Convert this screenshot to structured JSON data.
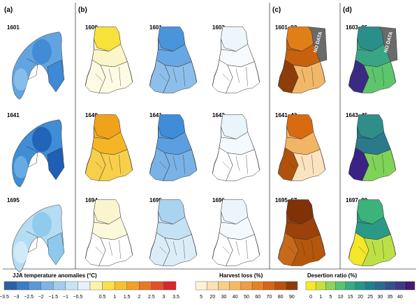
{
  "panels": [
    {
      "label": "(a)",
      "rows": [
        {
          "years": [
            "1601"
          ],
          "colors": [
            "#3e8ad4",
            "#62a4e2",
            "#8cc2ec"
          ]
        },
        {
          "years": [
            "1641"
          ],
          "colors": [
            "#1f5fb5",
            "#3f8dd5",
            "#6fb0e6"
          ]
        },
        {
          "years": [
            "1695"
          ],
          "colors": [
            "#8cc9ec",
            "#b4dcf2",
            "#d6ecf8"
          ]
        }
      ]
    },
    {
      "label": "(b)",
      "rows": [
        {
          "years": [
            "1600",
            "1601",
            "1602"
          ],
          "colors": [
            [
              "#f7e23a",
              "#fbf6c8",
              "#fdfbe4"
            ],
            [
              "#4a94db",
              "#67a7e3",
              "#8dbfea"
            ],
            [
              "#eef6fb",
              "#f6fafd",
              "#ffffff"
            ]
          ]
        },
        {
          "years": [
            "1640",
            "1641",
            "1642"
          ],
          "colors": [
            [
              "#f0a21a",
              "#f4b526",
              "#f7cf4a"
            ],
            [
              "#3f8dd8",
              "#5b9fe0",
              "#78b2e6"
            ],
            [
              "#e9f4fb",
              "#f3f9fd",
              "#ffffff"
            ]
          ]
        },
        {
          "years": [
            "1694",
            "1695",
            "1696"
          ],
          "colors": [
            [
              "#faf5cf",
              "#fbf8dc",
              "#ffffff"
            ],
            [
              "#a9d3ef",
              "#c5e2f4",
              "#dcedf8"
            ],
            [
              "#ecf5fb",
              "#f4f9fd",
              "#ffffff"
            ]
          ]
        }
      ]
    },
    {
      "label": "(c)",
      "rows": [
        {
          "years": [
            "1601–03"
          ],
          "colors": [
            "#e07f16",
            "#c8610e",
            "#f2b86a",
            "#8e3d08"
          ],
          "no_data": true
        },
        {
          "years": [
            "1641–43"
          ],
          "colors": [
            "#d86a10",
            "#f2b566",
            "#fbe3c0",
            "#b0520c"
          ]
        },
        {
          "years": [
            "1695–67"
          ],
          "colors": [
            "#7f3208",
            "#9a420a",
            "#b5560d",
            "#c8681a"
          ]
        }
      ]
    },
    {
      "label": "(d)",
      "rows": [
        {
          "years": [
            "1603–05"
          ],
          "colors": [
            "#2a8f88",
            "#3aa584",
            "#5dc56c",
            "#3b2a83"
          ],
          "no_data": true
        },
        {
          "years": [
            "1643–45"
          ],
          "colors": [
            "#2f8d8a",
            "#2a7a8c",
            "#7fd356",
            "#3b2285"
          ]
        },
        {
          "years": [
            "1697–99"
          ],
          "colors": [
            "#3bb37a",
            "#2a9a86",
            "#bde046",
            "#f4e628"
          ]
        }
      ]
    }
  ],
  "no_data_label": "NO DATA",
  "legends": [
    {
      "title": "JJA temperature anomalies (°C)",
      "colors": [
        "#2c5fa8",
        "#3b7cc6",
        "#5a97d6",
        "#7fb3e4",
        "#a3cdee",
        "#c7e4f6",
        "#e6f2fa",
        "#fbf3b0",
        "#f8e14a",
        "#f4c22e",
        "#eea02a",
        "#e77826",
        "#e0502b",
        "#d8262b"
      ],
      "ticks": [
        "−3.5",
        "−3",
        "−2.5",
        "−2",
        "−1.5",
        "−1",
        "−0.5",
        "0.5",
        "1",
        "1.5",
        "2",
        "2.5",
        "3",
        "3.5"
      ]
    },
    {
      "title": "Harvest loss (%)",
      "colors": [
        "#fdf2d8",
        "#fbe2b4",
        "#f8cf8a",
        "#f5b865",
        "#f09c42",
        "#e58228",
        "#d36617",
        "#b9500e",
        "#8e3a07"
      ],
      "ticks": [
        "5",
        "20",
        "30",
        "40",
        "50",
        "60",
        "70",
        "80",
        "90"
      ]
    },
    {
      "title": "Desertion ratio (%)",
      "colors": [
        "#fde725",
        "#c8e03a",
        "#8fd35a",
        "#5cc36f",
        "#36ac80",
        "#26968a",
        "#237f8e",
        "#2c698e",
        "#35518b",
        "#3e3a85",
        "#46196c"
      ],
      "ticks": [
        "0",
        "1",
        "5",
        "10",
        "15",
        "20",
        "25",
        "30",
        "35",
        "40"
      ]
    }
  ]
}
